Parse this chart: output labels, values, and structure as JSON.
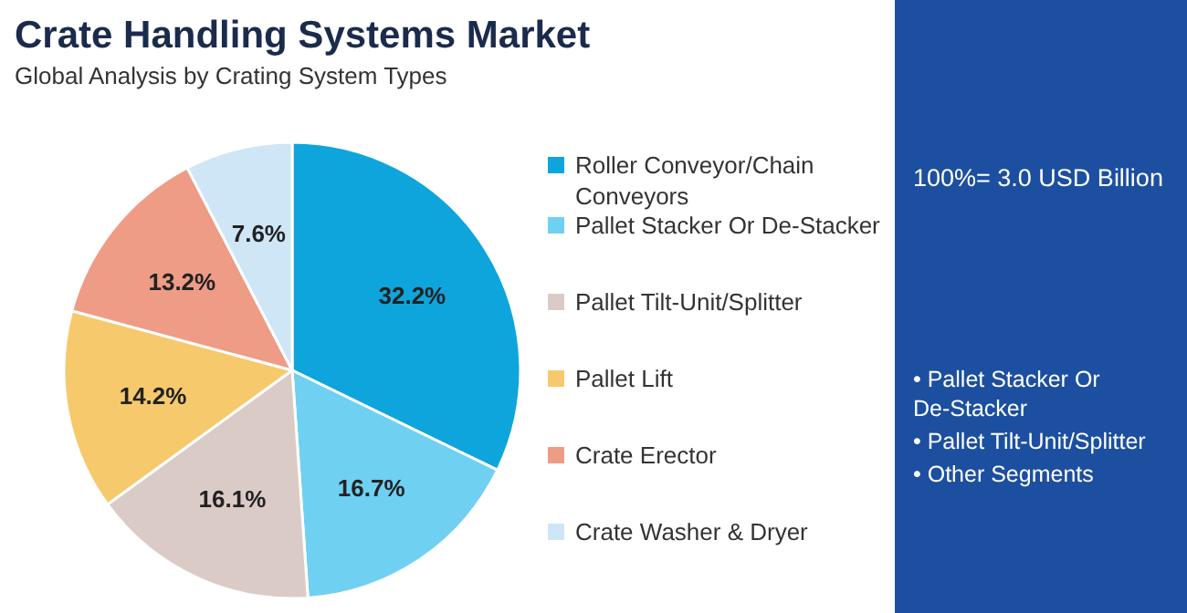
{
  "chart_data": {
    "type": "pie",
    "title": "Crate Handling Systems Market",
    "subtitle": "Global Analysis by Crating System Types",
    "categories": [
      "Roller Conveyor/Chain Conveyors",
      "Pallet Stacker Or De-Stacker",
      "Pallet Tilt-Unit/Splitter",
      "Pallet Lift",
      "Crate Erector",
      "Crate Washer & Dryer"
    ],
    "values": [
      32.2,
      16.7,
      16.1,
      14.2,
      13.2,
      7.6
    ],
    "value_labels": [
      "32.2%",
      "16.7%",
      "16.1%",
      "14.2%",
      "13.2%",
      "7.6%"
    ],
    "colors": [
      "#0ea5dc",
      "#6fd0f2",
      "#dbcbc7",
      "#f6ca6c",
      "#ee9c86",
      "#cfe6f6"
    ],
    "legend": "right",
    "annotations": [
      "100%= 3.0 USD Billion",
      "• Pallet Stacker Or De-Stacker",
      "• Pallet Tilt-Unit/Splitter",
      "• Other Segments"
    ]
  }
}
